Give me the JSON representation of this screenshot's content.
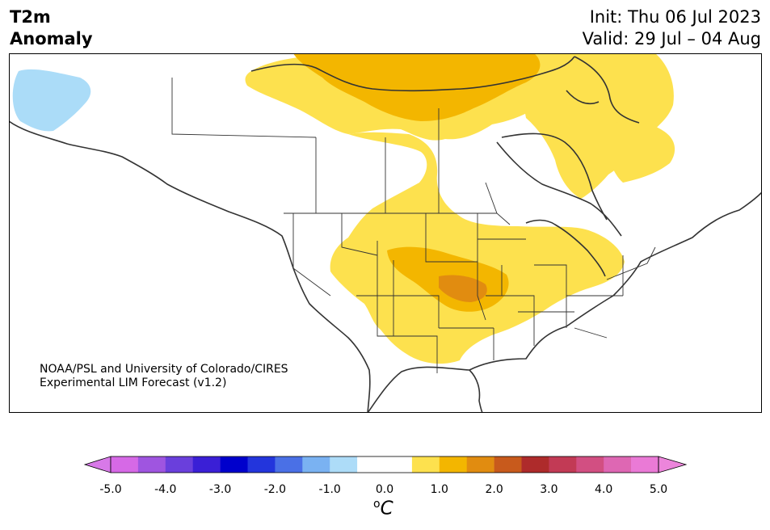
{
  "title": {
    "line1": "T2m",
    "line2": "Anomaly"
  },
  "dates": {
    "init": "Init: Thu 06 Jul 2023",
    "valid": "Valid: 29 Jul – 04 Aug"
  },
  "credit": {
    "line1": "NOAA/PSL and University of Colorado/CIRES",
    "line2": "Experimental LIM Forecast (v1.2)"
  },
  "colorbar": {
    "ticks": [
      "-5.0",
      "-4.0",
      "-3.0",
      "-2.0",
      "-1.0",
      "0.0",
      "1.0",
      "2.0",
      "3.0",
      "4.0",
      "5.0"
    ],
    "unit": "C",
    "unit_prefix": "o",
    "colors": [
      "#d669e6",
      "#9f55e0",
      "#6a3fdc",
      "#3a1fd6",
      "#0000cc",
      "#2335dc",
      "#4a70e6",
      "#7ab2f2",
      "#addcf8",
      "#ffffff",
      "#ffffff",
      "#fde14e",
      "#f3b600",
      "#e18c10",
      "#c85a1c",
      "#ae2b2b",
      "#c23a55",
      "#d24f82",
      "#de67b3",
      "#ea7ad6"
    ],
    "under_color": "#d879e8",
    "over_color": "#ec85db"
  },
  "map_colors": {
    "light_blue": "#abdcf8",
    "yellow": "#fde14e",
    "gold": "#f3b600",
    "orange": "#e18c10"
  }
}
